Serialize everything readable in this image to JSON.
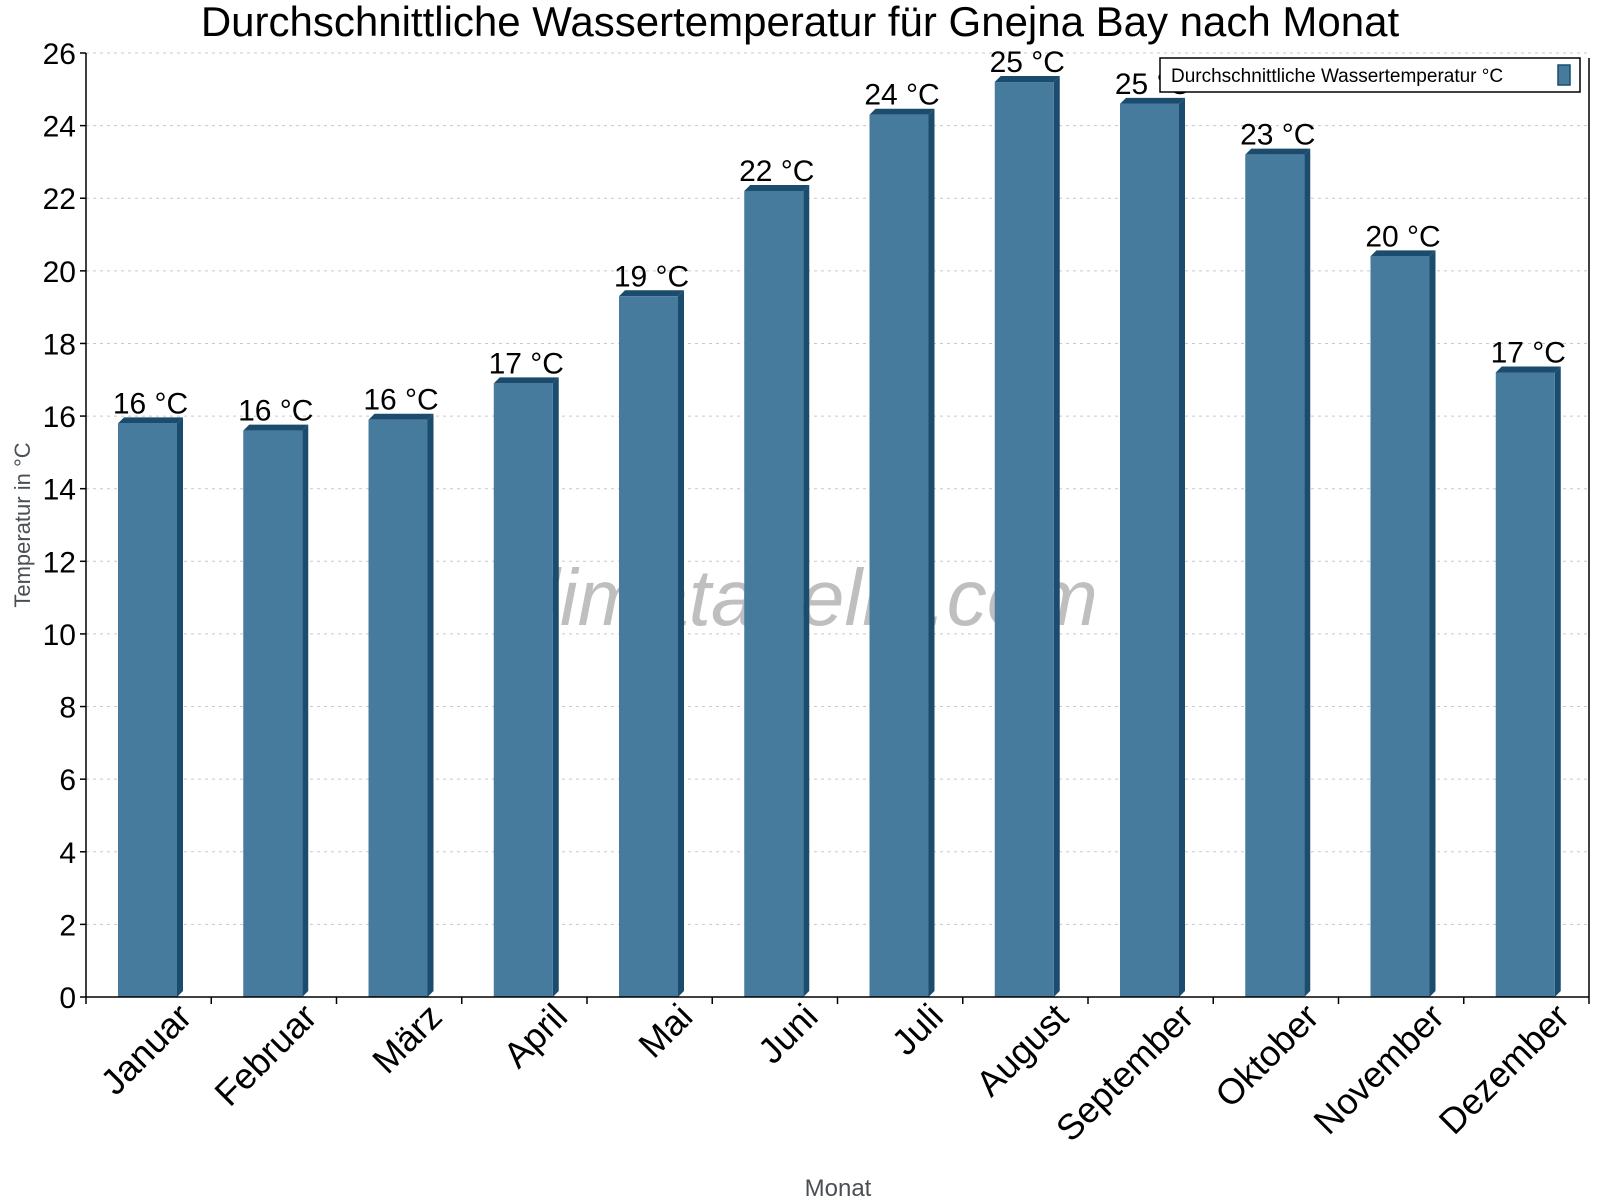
{
  "chart_data": {
    "type": "bar",
    "title": "Durchschnittliche Wassertemperatur für Gnejna Bay nach Monat",
    "xlabel": "Monat",
    "ylabel": "Temperatur in °C",
    "ylim": [
      0,
      26
    ],
    "yticks": [
      0,
      2,
      4,
      6,
      8,
      10,
      12,
      14,
      16,
      18,
      20,
      22,
      24,
      26
    ],
    "grid": true,
    "legend_position": "top-right",
    "categories": [
      "Januar",
      "Februar",
      "März",
      "April",
      "Mai",
      "Juni",
      "Juli",
      "August",
      "September",
      "Oktober",
      "November",
      "Dezember"
    ],
    "series": [
      {
        "name": "Durchschnittliche Wassertemperatur °C",
        "color": "#467b9d",
        "shade_color": "#1b4c6e",
        "values": [
          15.8,
          15.6,
          15.9,
          16.9,
          19.3,
          22.2,
          24.3,
          25.2,
          24.6,
          23.2,
          20.4,
          17.2
        ],
        "data_labels": [
          "16 °C",
          "16 °C",
          "16 °C",
          "17 °C",
          "19 °C",
          "22 °C",
          "24 °C",
          "25 °C",
          "25 °C",
          "23 °C",
          "20 °C",
          "17 °C"
        ]
      }
    ],
    "watermark": "klimatabelle.com"
  }
}
